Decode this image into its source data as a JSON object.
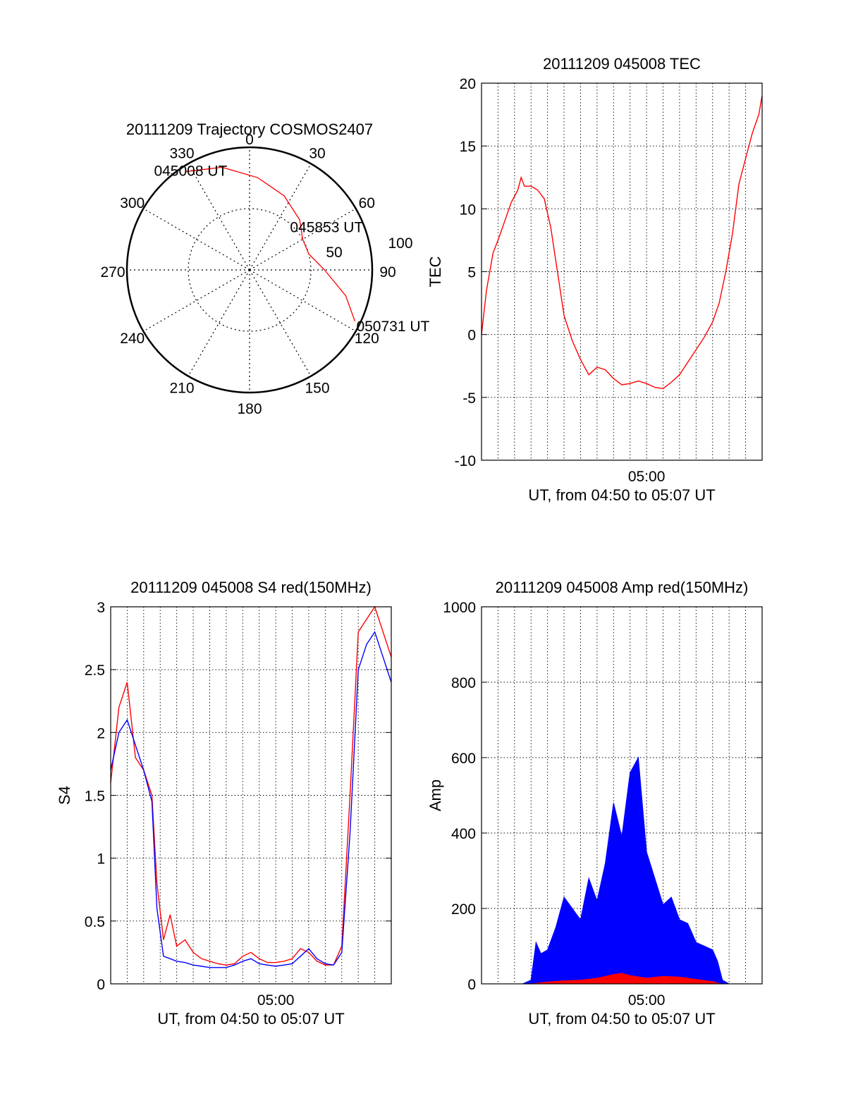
{
  "chart_data": [
    {
      "type": "polar",
      "title": "20111209 Trajectory COSMOS2407",
      "angle_labels": [
        "0",
        "30",
        "60",
        "90",
        "120",
        "150",
        "180",
        "210",
        "240",
        "270",
        "300",
        "330"
      ],
      "radius_labels": [
        "50",
        "100"
      ],
      "rlim": [
        0,
        100
      ],
      "grid": true,
      "series": [
        {
          "color": "#ff0000",
          "points": [
            {
              "az": 327,
              "el": 4,
              "label": "045008 UT"
            },
            {
              "az": 345,
              "el": 12
            },
            {
              "az": 5,
              "el": 22
            },
            {
              "az": 25,
              "el": 30
            },
            {
              "az": 45,
              "el": 38
            },
            {
              "az": 60,
              "el": 45,
              "label": "045853 UT"
            },
            {
              "az": 75,
              "el": 45
            },
            {
              "az": 90,
              "el": 35
            },
            {
              "az": 105,
              "el": 17
            },
            {
              "az": 116,
              "el": 4,
              "label": "050731 UT"
            }
          ]
        }
      ]
    },
    {
      "type": "line",
      "title": "20111209 045008 TEC",
      "xlabel": "UT, from 04:50 to 05:07 UT",
      "ylabel": "TEC",
      "xlim": [
        0,
        17
      ],
      "ylim": [
        -10,
        20
      ],
      "yticks": [
        "-10",
        "-5",
        "0",
        "5",
        "10",
        "15",
        "20"
      ],
      "xticks": [
        {
          "x": 10,
          "label": "05:00"
        }
      ],
      "grid": true,
      "series": [
        {
          "color": "#ff0000",
          "x": [
            0,
            0.3,
            0.7,
            1.0,
            1.4,
            1.8,
            2.2,
            2.4,
            2.6,
            3.0,
            3.4,
            3.8,
            4.2,
            4.6,
            5.0,
            5.5,
            6.0,
            6.5,
            7.0,
            7.5,
            8.0,
            8.5,
            9.0,
            9.5,
            10.0,
            10.5,
            11.0,
            11.5,
            12.0,
            12.5,
            13.0,
            13.5,
            14.0,
            14.4,
            14.8,
            15.2,
            15.6,
            16.0,
            16.4,
            16.8,
            17.0
          ],
          "y": [
            0,
            3.5,
            6.5,
            7.5,
            9.0,
            10.5,
            11.5,
            12.5,
            11.8,
            11.8,
            11.5,
            10.8,
            8.5,
            5.0,
            1.5,
            -0.5,
            -2.0,
            -3.2,
            -2.6,
            -2.8,
            -3.5,
            -4.0,
            -3.9,
            -3.7,
            -3.9,
            -4.2,
            -4.3,
            -3.8,
            -3.2,
            -2.2,
            -1.2,
            -0.2,
            1.0,
            2.5,
            5.0,
            8.0,
            12.0,
            14.0,
            16.0,
            17.5,
            19.0
          ]
        }
      ]
    },
    {
      "type": "line",
      "title": "20111209 045008 S4 red(150MHz)",
      "xlabel": "UT, from 04:50 to 05:07 UT",
      "ylabel": "S4",
      "xlim": [
        0,
        17
      ],
      "ylim": [
        0,
        3
      ],
      "yticks": [
        "0",
        "0.5",
        "1",
        "1.5",
        "2",
        "2.5",
        "3"
      ],
      "xticks": [
        {
          "x": 10,
          "label": "05:00"
        }
      ],
      "grid": true,
      "series": [
        {
          "color": "#ff0000",
          "x": [
            0,
            0.5,
            1.0,
            1.5,
            2.0,
            2.5,
            2.8,
            3.2,
            3.6,
            4.0,
            4.5,
            5.0,
            5.5,
            6.0,
            6.5,
            7.0,
            7.5,
            8.0,
            8.5,
            9.0,
            9.5,
            10.0,
            10.5,
            11.0,
            11.5,
            12.0,
            12.5,
            13.0,
            13.5,
            14.0,
            14.5,
            15.0,
            15.5,
            16.0,
            16.5,
            17.0
          ],
          "y": [
            1.6,
            2.2,
            2.4,
            1.8,
            1.7,
            1.5,
            0.8,
            0.35,
            0.55,
            0.3,
            0.35,
            0.25,
            0.2,
            0.18,
            0.16,
            0.15,
            0.16,
            0.22,
            0.25,
            0.2,
            0.17,
            0.17,
            0.18,
            0.2,
            0.28,
            0.25,
            0.18,
            0.15,
            0.15,
            0.3,
            1.5,
            2.8,
            2.9,
            3.0,
            2.8,
            2.6
          ]
        },
        {
          "color": "#0000ff",
          "x": [
            0,
            0.5,
            1.0,
            1.5,
            2.0,
            2.5,
            2.8,
            3.2,
            3.6,
            4.0,
            4.5,
            5.0,
            5.5,
            6.0,
            6.5,
            7.0,
            7.5,
            8.0,
            8.5,
            9.0,
            9.5,
            10.0,
            10.5,
            11.0,
            11.5,
            12.0,
            12.5,
            13.0,
            13.5,
            14.0,
            14.5,
            15.0,
            15.5,
            16.0,
            16.5,
            17.0
          ],
          "y": [
            1.7,
            2.0,
            2.1,
            1.9,
            1.7,
            1.45,
            0.6,
            0.22,
            0.2,
            0.18,
            0.17,
            0.15,
            0.14,
            0.13,
            0.13,
            0.13,
            0.15,
            0.18,
            0.2,
            0.16,
            0.15,
            0.14,
            0.15,
            0.16,
            0.22,
            0.28,
            0.2,
            0.16,
            0.15,
            0.25,
            1.2,
            2.5,
            2.7,
            2.8,
            2.6,
            2.4
          ]
        }
      ]
    },
    {
      "type": "area",
      "title": "20111209 045008 Amp red(150MHz)",
      "xlabel": "UT, from 04:50 to 05:07 UT",
      "ylabel": "Amp",
      "xlim": [
        0,
        17
      ],
      "ylim": [
        0,
        1000
      ],
      "yticks": [
        "0",
        "200",
        "400",
        "600",
        "800",
        "1000"
      ],
      "xticks": [
        {
          "x": 10,
          "label": "05:00"
        }
      ],
      "grid": true,
      "series": [
        {
          "color": "#0000ff",
          "x": [
            0,
            2.5,
            3.0,
            3.3,
            3.6,
            4.0,
            4.5,
            5.0,
            5.5,
            6.0,
            6.5,
            7.0,
            7.5,
            8.0,
            8.5,
            9.0,
            9.5,
            10.0,
            10.5,
            11.0,
            11.5,
            12.0,
            12.5,
            13.0,
            13.5,
            14.0,
            14.3,
            14.6,
            15.0,
            17.0
          ],
          "y": [
            0,
            0,
            10,
            110,
            80,
            90,
            150,
            230,
            200,
            170,
            280,
            220,
            320,
            480,
            390,
            560,
            600,
            350,
            280,
            210,
            230,
            170,
            160,
            110,
            100,
            90,
            60,
            10,
            0,
            0
          ]
        },
        {
          "color": "#ff0000",
          "x": [
            0,
            3.0,
            4.0,
            5.0,
            6.0,
            7.0,
            7.5,
            8.0,
            8.5,
            9.0,
            10.0,
            11.0,
            12.0,
            13.0,
            14.0,
            14.5,
            17.0
          ],
          "y": [
            0,
            0,
            5,
            8,
            10,
            15,
            20,
            25,
            28,
            22,
            15,
            20,
            18,
            12,
            6,
            0,
            0
          ]
        }
      ]
    }
  ]
}
